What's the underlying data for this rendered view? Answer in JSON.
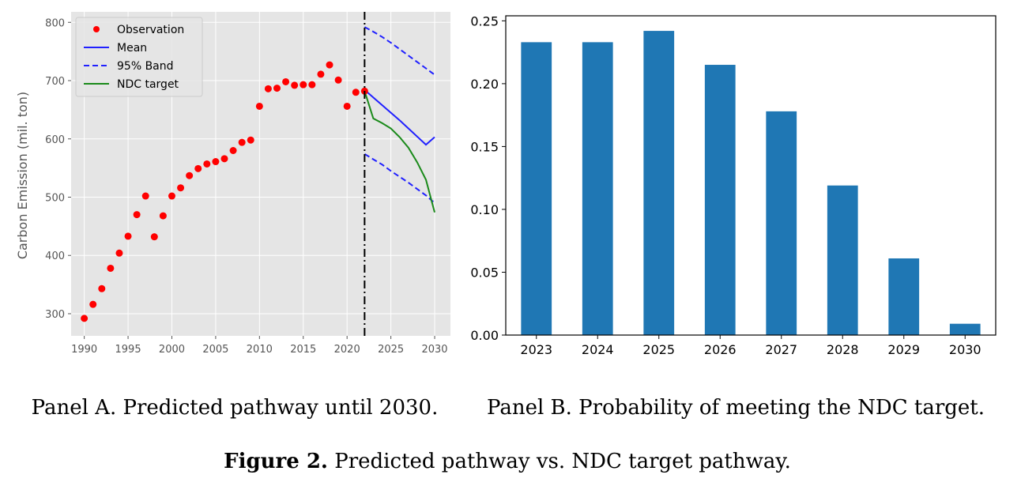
{
  "chart_data": [
    {
      "type": "line",
      "ylabel": "Carbon Emission (mil. ton)",
      "xlabel": "",
      "xlim": [
        1988.5,
        2031.8
      ],
      "ylim": [
        262,
        818
      ],
      "xticks": [
        1990,
        1995,
        2000,
        2005,
        2010,
        2015,
        2020,
        2025,
        2030
      ],
      "yticks": [
        300,
        400,
        500,
        600,
        700,
        800
      ],
      "grid": true,
      "legend_position": "top-left",
      "vline_x": 2022,
      "colors": {
        "Observation": "#ff0000",
        "Mean": "#2020ff",
        "Band": "#2020ff",
        "NDC": "#1a8a1a",
        "vline": "#000000",
        "background": "#e5e5e5"
      },
      "legend": {
        "observation": "Observation",
        "mean": "Mean",
        "band": "95% Band",
        "ndc": "NDC target"
      },
      "observations": {
        "x": [
          1990,
          1991,
          1992,
          1993,
          1994,
          1995,
          1996,
          1997,
          1998,
          1999,
          2000,
          2001,
          2002,
          2003,
          2004,
          2005,
          2006,
          2007,
          2008,
          2009,
          2010,
          2011,
          2012,
          2013,
          2014,
          2015,
          2016,
          2017,
          2018,
          2019,
          2020,
          2021,
          2022
        ],
        "y": [
          292,
          316,
          343,
          378,
          404,
          433,
          470,
          502,
          432,
          468,
          502,
          516,
          537,
          549,
          557,
          561,
          566,
          580,
          594,
          598,
          656,
          686,
          687,
          698,
          692,
          693,
          693,
          711,
          727,
          701,
          656,
          680,
          682
        ]
      },
      "mean": {
        "x": [
          2022,
          2023,
          2024,
          2025,
          2026,
          2027,
          2028,
          2029,
          2030
        ],
        "y": [
          684,
          671,
          658,
          645,
          632,
          618,
          604,
          590,
          603
        ]
      },
      "upper_band": {
        "x": [
          2022,
          2023,
          2024,
          2025,
          2026,
          2027,
          2028,
          2029,
          2030
        ],
        "y": [
          792,
          784,
          775,
          765,
          754,
          743,
          732,
          721,
          710
        ]
      },
      "lower_band": {
        "x": [
          2022,
          2023,
          2024,
          2025,
          2026,
          2027,
          2028,
          2029,
          2030
        ],
        "y": [
          574,
          565,
          556,
          545,
          535,
          525,
          514,
          503,
          490
        ]
      },
      "ndc": {
        "x": [
          2022,
          2023,
          2024,
          2025,
          2026,
          2027,
          2028,
          2029,
          2030
        ],
        "y": [
          682,
          635,
          627,
          618,
          603,
          585,
          560,
          530,
          474
        ]
      }
    },
    {
      "type": "bar",
      "categories": [
        "2023",
        "2024",
        "2025",
        "2026",
        "2027",
        "2028",
        "2029",
        "2030"
      ],
      "values": [
        0.233,
        0.233,
        0.242,
        0.215,
        0.178,
        0.119,
        0.061,
        0.009
      ],
      "ylim": [
        0,
        0.254
      ],
      "yticks": [
        "0.00",
        "0.05",
        "0.10",
        "0.15",
        "0.20",
        "0.25"
      ],
      "ytick_values": [
        0,
        0.05,
        0.1,
        0.15,
        0.2,
        0.25
      ],
      "xlabel": "",
      "ylabel": "",
      "grid": false,
      "colors": {
        "bar": "#1f77b4"
      }
    }
  ],
  "captions": {
    "panel_a": "Panel A. Predicted pathway until 2030.",
    "panel_b": "Panel B. Probability of meeting the NDC target.",
    "figure_bold": "Figure 2.",
    "figure_rest": " Predicted pathway vs. NDC target pathway."
  }
}
